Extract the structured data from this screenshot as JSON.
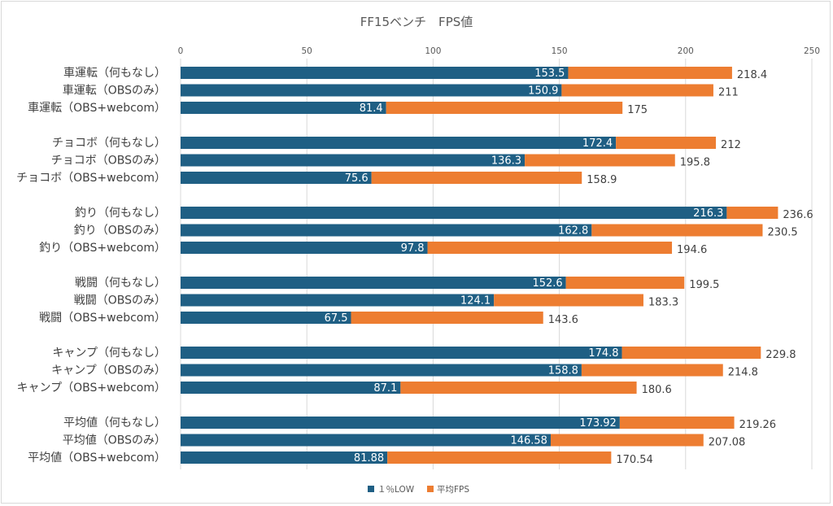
{
  "chart_data": {
    "type": "bar",
    "orientation": "horizontal",
    "title": "FF15ベンチ　FPS値",
    "xlabel": "",
    "ylabel": "",
    "xlim": [
      0,
      250
    ],
    "ticks": [
      0,
      50,
      100,
      150,
      200,
      250
    ],
    "grid": true,
    "legend_position": "bottom",
    "categories": [
      "車運転（何もなし）",
      "車運転（OBSのみ）",
      "車運転（OBS+webcom）",
      "チョコボ（何もなし）",
      "チョコボ（OBSのみ）",
      "チョコボ（OBS+webcom）",
      "釣り（何もなし）",
      "釣り（OBSのみ）",
      "釣り（OBS+webcom）",
      "戦闘（何もなし）",
      "戦闘（OBSのみ）",
      "戦闘（OBS+webcom）",
      "キャンプ（何もなし）",
      "キャンプ（OBSのみ）",
      "キャンプ（OBS+webcom）",
      "平均値（何もなし）",
      "平均値（OBSのみ）",
      "平均値（OBS+webcom）"
    ],
    "series": [
      {
        "name": "１％LOW",
        "color": "#1f5f84",
        "values": [
          153.5,
          150.9,
          81.4,
          172.4,
          136.3,
          75.6,
          216.3,
          162.8,
          97.8,
          152.6,
          124.1,
          67.5,
          174.8,
          158.8,
          87.1,
          173.92,
          146.58,
          81.88
        ]
      },
      {
        "name": "平均FPS",
        "color": "#ed7d31",
        "values": [
          218.4,
          211,
          175,
          212,
          195.8,
          158.9,
          236.6,
          230.5,
          194.6,
          199.5,
          183.3,
          143.6,
          229.8,
          214.8,
          180.6,
          219.26,
          207.08,
          170.54
        ]
      }
    ]
  }
}
